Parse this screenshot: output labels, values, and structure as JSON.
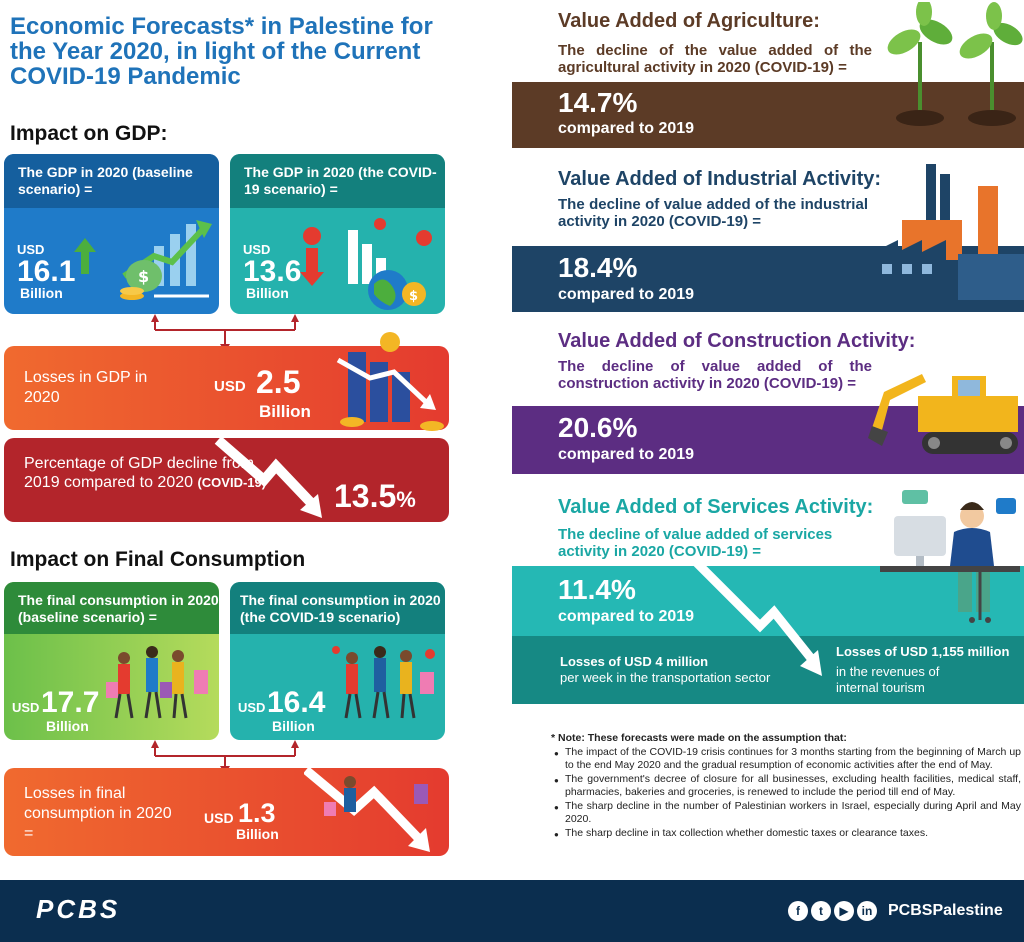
{
  "title": "Economic Forecasts* in Palestine for the Year 2020, in light of the Current COVID-19 Pandemic",
  "gdp": {
    "heading": "Impact on GDP:",
    "baseline": {
      "label": "The GDP in 2020 (baseline scenario) =",
      "currency": "USD",
      "value": "16.1",
      "unit": "Billion"
    },
    "covid": {
      "label": "The GDP in 2020 (the COVID-19 scenario) =",
      "currency": "USD",
      "value": "13.6",
      "unit": "Billion"
    },
    "losses": {
      "label": "Losses in GDP in 2020",
      "currency": "USD",
      "value": "2.5",
      "unit": "Billion"
    },
    "decline": {
      "label": "Percentage of GDP decline from 2019 compared to 2020",
      "label_tag": "(COVID-19)",
      "value": "13.5",
      "pct": "%"
    }
  },
  "consumption": {
    "heading": "Impact on Final Consumption",
    "baseline": {
      "label": "The final consumption in 2020 (baseline scenario) =",
      "currency": "USD",
      "value": "17.7",
      "unit": "Billion"
    },
    "covid": {
      "label": "The final consumption in 2020 (the COVID-19 scenario)",
      "currency": "USD",
      "value": "16.4",
      "unit": "Billion"
    },
    "losses": {
      "label": "Losses in final consumption in 2020 =",
      "currency": "USD",
      "value": "1.3",
      "unit": "Billion"
    }
  },
  "agriculture": {
    "title": "Value Added of Agriculture:",
    "sub": "The decline of the value added of the agricultural activity in 2020 (COVID-19) =",
    "pct": "14.7%",
    "compare": "compared to 2019"
  },
  "industry": {
    "title": "Value Added of Industrial Activity:",
    "sub": "The decline of value added of the industrial activity in 2020 (COVID-19) =",
    "pct": "18.4%",
    "compare": "compared to 2019"
  },
  "construction": {
    "title": "Value Added of Construction Activity:",
    "sub": "The decline of value added of the construction activity in 2020 (COVID-19) =",
    "pct": "20.6%",
    "compare": "compared to 2019"
  },
  "services": {
    "title": "Value Added of Services Activity:",
    "sub": "The decline of value added of services activity in 2020 (COVID-19) =",
    "pct": "11.4%",
    "compare": "compared to 2019",
    "loss_transport_title": "Losses of USD 4 million",
    "loss_transport_sub": "per week in the transportation sector",
    "loss_tourism_title": "Losses of USD 1,155 million",
    "loss_tourism_sub1": "in the revenues of",
    "loss_tourism_sub2": "internal tourism"
  },
  "note": {
    "heading": "* Note: These forecasts were made on the assumption that:",
    "items": [
      "The impact of the COVID-19 crisis continues for 3 months starting from the beginning of March up to the end May 2020 and the gradual resumption of economic activities after the end of May.",
      "The government's decree of closure for all businesses, excluding health facilities, medical staff, pharmacies, bakeries and groceries, is renewed to include the period till end of May.",
      "The sharp decline in the number of Palestinian workers in Israel, especially during April and May 2020.",
      "The sharp decline in tax collection whether domestic taxes or clearance taxes."
    ]
  },
  "footer": {
    "logo": "PCBS",
    "handle": "PCBSPalestine",
    "social_icons": [
      "facebook-icon",
      "twitter-icon",
      "youtube-icon",
      "linkedin-icon"
    ]
  },
  "colors": {
    "title_blue": "#1f73b9",
    "agri_brown": "#5c3b26",
    "industry_navy": "#1e4466",
    "construction_purple": "#5c2d82",
    "services_teal": "#1aa7a4",
    "loss_red": "#e43b2f",
    "footer_navy": "#0b2e4f"
  }
}
